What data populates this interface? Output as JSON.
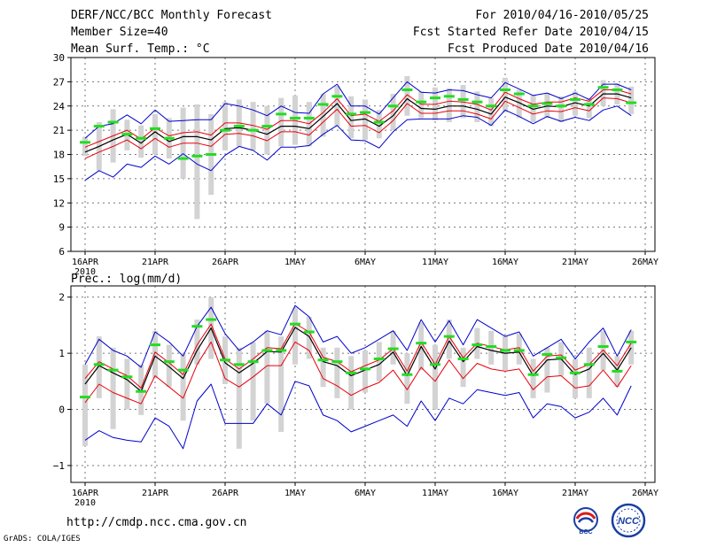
{
  "header": {
    "title": "DERF/NCC/BCC Monthly Forecast",
    "member_size": "Member Size=40",
    "variable": "Mean Surf. Temp.: °C",
    "period": "For 2010/04/16-2010/05/25",
    "started": "Fcst Started Refer Date 2010/04/15",
    "produced": "Fcst Produced Date 2010/04/16"
  },
  "footer": {
    "url": "http://cmdp.ncc.cma.gov.cn",
    "grads": "GrADS: COLA/IGES"
  },
  "logos": {
    "bcc": "BCC",
    "ncc": "NCC"
  },
  "colors": {
    "box": "#d3d3d3",
    "center": "#000000",
    "band": "#e8000b",
    "envelope": "#0000cc",
    "obs": "#22dd22",
    "grid": "#777777"
  },
  "chart_data": [
    {
      "type": "line",
      "title": "Mean Surf. Temp.: °C",
      "x_tick_labels": [
        "16APR",
        "21APR",
        "26APR",
        "1MAY",
        "6MAY",
        "11MAY",
        "16MAY",
        "21MAY",
        "26MAY"
      ],
      "x_tick_days": [
        0,
        5,
        10,
        15,
        20,
        25,
        30,
        35,
        40
      ],
      "x_sublabel": "2010",
      "ylim": [
        6,
        30
      ],
      "y_ticks": [
        6,
        9,
        12,
        15,
        18,
        21,
        24,
        27,
        30
      ],
      "y_tick_labels": [
        "6",
        "9",
        "12",
        "15",
        "18",
        "21",
        "24",
        "27",
        "30"
      ],
      "days": [
        0,
        1,
        2,
        3,
        4,
        5,
        6,
        7,
        8,
        9,
        10,
        11,
        12,
        13,
        14,
        15,
        16,
        17,
        18,
        19,
        20,
        21,
        22,
        23,
        24,
        25,
        26,
        27,
        28,
        29,
        30,
        31,
        32,
        33,
        34,
        35,
        36,
        37,
        38,
        39
      ],
      "series": [
        {
          "name": "ensemble mean",
          "values": [
            18.3,
            19.0,
            19.8,
            20.5,
            19.4,
            20.8,
            19.6,
            20.2,
            20.2,
            19.8,
            21.2,
            21.3,
            21.0,
            20.5,
            21.5,
            21.5,
            21.2,
            22.7,
            24.3,
            22.2,
            22.4,
            21.5,
            22.8,
            24.9,
            23.7,
            23.6,
            24.0,
            24.0,
            23.6,
            23.0,
            25.1,
            24.4,
            23.6,
            24.0,
            23.9,
            24.4,
            24.0,
            25.5,
            25.5,
            25.0
          ]
        },
        {
          "name": "upper band",
          "values": [
            18.9,
            19.6,
            20.3,
            21.0,
            19.9,
            21.3,
            20.3,
            20.7,
            20.8,
            20.4,
            21.9,
            21.9,
            21.6,
            21.1,
            22.2,
            22.2,
            21.8,
            23.2,
            24.9,
            22.8,
            23.0,
            22.1,
            23.4,
            25.4,
            24.2,
            24.2,
            24.6,
            24.5,
            24.2,
            23.5,
            25.7,
            24.9,
            24.2,
            24.5,
            24.5,
            25.0,
            24.6,
            26.0,
            26.0,
            25.5
          ]
        },
        {
          "name": "lower band",
          "values": [
            17.5,
            18.3,
            19.0,
            19.8,
            18.7,
            20.0,
            18.9,
            19.4,
            19.4,
            19.0,
            20.5,
            20.6,
            20.3,
            19.7,
            20.8,
            20.8,
            20.4,
            22.0,
            23.6,
            21.5,
            21.6,
            20.7,
            22.2,
            24.3,
            23.1,
            23.1,
            23.4,
            23.4,
            23.0,
            22.4,
            24.6,
            23.8,
            23.0,
            23.4,
            23.3,
            23.8,
            23.4,
            25.0,
            24.9,
            24.4
          ]
        },
        {
          "name": "max envelope",
          "values": [
            20.0,
            21.5,
            21.8,
            22.9,
            21.8,
            23.5,
            22.1,
            22.2,
            22.3,
            22.3,
            24.3,
            24.0,
            23.5,
            22.8,
            24.0,
            23.2,
            23.1,
            25.5,
            26.7,
            24.0,
            24.0,
            23.0,
            25.0,
            27.0,
            25.7,
            25.6,
            26.0,
            25.9,
            25.4,
            25.0,
            26.9,
            26.1,
            25.3,
            25.6,
            24.9,
            25.6,
            24.8,
            26.7,
            26.7,
            26.0
          ]
        },
        {
          "name": "min envelope",
          "values": [
            14.8,
            16.0,
            15.2,
            16.8,
            16.4,
            17.8,
            16.8,
            18.1,
            16.8,
            16.0,
            17.9,
            19.0,
            18.5,
            17.3,
            18.9,
            18.9,
            19.1,
            20.5,
            21.6,
            19.8,
            19.7,
            18.8,
            20.8,
            22.3,
            22.4,
            22.4,
            22.4,
            22.8,
            22.6,
            21.6,
            23.5,
            22.7,
            21.8,
            22.7,
            22.1,
            22.6,
            22.2,
            23.5,
            24.0,
            22.8
          ]
        },
        {
          "name": "observed",
          "values": [
            19.5,
            21.5,
            22.0,
            20.5,
            20.0,
            21.2,
            20.0,
            17.5,
            17.8,
            18.0,
            21.0,
            21.5,
            21.0,
            21.5,
            23.0,
            22.5,
            22.5,
            24.2,
            25.2,
            23.0,
            23.2,
            22.0,
            24.0,
            26.0,
            24.5,
            25.0,
            25.2,
            24.8,
            24.5,
            24.0,
            26.0,
            25.5,
            24.0,
            24.3,
            24.0,
            24.8,
            24.2,
            26.3,
            26.0,
            24.4
          ]
        },
        {
          "name": "spread max",
          "values": [
            20.2,
            22.0,
            23.6,
            22.3,
            21.6,
            23.0,
            22.5,
            23.8,
            24.2,
            23.0,
            24.5,
            24.8,
            24.5,
            24.0,
            25.0,
            25.3,
            24.5,
            25.5,
            26.5,
            25.2,
            24.8,
            23.5,
            25.5,
            27.7,
            25.8,
            26.3,
            26.2,
            26.6,
            25.8,
            25.0,
            27.5,
            26.0,
            25.4,
            25.6,
            25.2,
            25.8,
            25.0,
            27.2,
            26.8,
            26.4
          ]
        },
        {
          "name": "spread min",
          "values": [
            17.8,
            16.0,
            17.0,
            18.5,
            17.6,
            18.0,
            17.5,
            15.0,
            10.0,
            13.0,
            18.5,
            19.0,
            18.5,
            18.0,
            19.0,
            19.2,
            19.0,
            20.2,
            21.5,
            20.0,
            19.8,
            20.0,
            21.0,
            22.8,
            22.5,
            22.2,
            22.0,
            22.5,
            22.0,
            21.5,
            23.2,
            22.5,
            22.0,
            22.5,
            22.0,
            22.8,
            22.5,
            24.0,
            24.2,
            23.0
          ]
        }
      ]
    },
    {
      "type": "line",
      "title": "Prec.: log(mm/d)",
      "x_tick_labels": [
        "16APR",
        "21APR",
        "26APR",
        "1MAY",
        "6MAY",
        "11MAY",
        "16MAY",
        "21MAY",
        "26MAY"
      ],
      "x_tick_days": [
        0,
        5,
        10,
        15,
        20,
        25,
        30,
        35,
        40
      ],
      "x_sublabel": "2010",
      "ylim": [
        -1.3,
        2.2
      ],
      "y_ticks": [
        -1,
        0,
        1,
        2
      ],
      "y_tick_labels": [
        "−1",
        "0",
        "1",
        "2"
      ],
      "days": [
        0,
        1,
        2,
        3,
        4,
        5,
        6,
        7,
        8,
        9,
        10,
        11,
        12,
        13,
        14,
        15,
        16,
        17,
        18,
        19,
        20,
        21,
        22,
        23,
        24,
        25,
        26,
        27,
        28,
        29,
        30,
        31,
        32,
        33,
        34,
        35,
        36,
        37,
        38,
        39
      ],
      "series": [
        {
          "name": "ensemble mean",
          "values": [
            0.45,
            0.78,
            0.65,
            0.53,
            0.32,
            0.95,
            0.76,
            0.55,
            1.05,
            1.45,
            0.83,
            0.65,
            0.82,
            1.03,
            1.02,
            1.46,
            1.3,
            0.85,
            0.78,
            0.6,
            0.7,
            0.8,
            1.02,
            0.6,
            1.12,
            0.72,
            1.22,
            0.85,
            1.12,
            1.05,
            1.0,
            1.02,
            0.6,
            0.88,
            0.9,
            0.62,
            0.72,
            1.0,
            0.7,
            1.1
          ]
        },
        {
          "name": "upper band",
          "values": [
            0.55,
            0.85,
            0.72,
            0.6,
            0.38,
            1.02,
            0.83,
            0.62,
            1.15,
            1.52,
            0.9,
            0.72,
            0.9,
            1.1,
            1.08,
            1.53,
            1.38,
            0.93,
            0.85,
            0.67,
            0.78,
            0.88,
            1.08,
            0.68,
            1.2,
            0.8,
            1.3,
            0.92,
            1.18,
            1.12,
            1.06,
            1.1,
            0.68,
            0.95,
            0.97,
            0.7,
            0.8,
            1.06,
            0.78,
            1.18
          ]
        },
        {
          "name": "lower band",
          "values": [
            0.12,
            0.45,
            0.3,
            0.2,
            0.1,
            0.6,
            0.4,
            0.2,
            0.8,
            1.2,
            0.55,
            0.4,
            0.58,
            0.78,
            0.78,
            1.2,
            1.05,
            0.55,
            0.42,
            0.25,
            0.38,
            0.48,
            0.7,
            0.35,
            0.75,
            0.5,
            0.88,
            0.55,
            0.82,
            0.72,
            0.68,
            0.72,
            0.35,
            0.58,
            0.6,
            0.38,
            0.42,
            0.7,
            0.4,
            0.78
          ]
        },
        {
          "name": "max envelope",
          "values": [
            0.8,
            1.25,
            1.05,
            0.95,
            0.75,
            1.38,
            1.2,
            0.95,
            1.48,
            1.82,
            1.35,
            1.05,
            1.2,
            1.4,
            1.33,
            1.85,
            1.65,
            1.2,
            1.3,
            1.0,
            1.1,
            1.25,
            1.4,
            1.05,
            1.6,
            1.2,
            1.58,
            1.15,
            1.6,
            1.45,
            1.3,
            1.38,
            0.95,
            1.1,
            1.25,
            0.9,
            1.2,
            1.45,
            0.95,
            1.42
          ]
        },
        {
          "name": "min envelope",
          "values": [
            -0.55,
            -0.38,
            -0.5,
            -0.55,
            -0.58,
            -0.15,
            -0.3,
            -0.7,
            0.15,
            0.45,
            -0.25,
            -0.25,
            -0.25,
            0.1,
            -0.1,
            0.5,
            0.42,
            -0.1,
            -0.2,
            -0.4,
            -0.3,
            -0.2,
            -0.1,
            -0.3,
            0.15,
            -0.2,
            0.2,
            0.1,
            0.35,
            0.3,
            0.25,
            0.3,
            -0.15,
            0.1,
            0.05,
            -0.15,
            -0.05,
            0.2,
            -0.1,
            0.42
          ]
        },
        {
          "name": "observed",
          "values": [
            0.22,
            0.8,
            0.7,
            0.58,
            0.32,
            1.15,
            0.85,
            0.7,
            1.48,
            1.6,
            0.88,
            0.8,
            0.85,
            1.05,
            1.05,
            1.52,
            1.38,
            0.88,
            0.85,
            0.65,
            0.72,
            0.9,
            1.08,
            0.62,
            1.18,
            0.8,
            1.3,
            0.9,
            1.15,
            1.12,
            1.05,
            1.05,
            0.62,
            0.98,
            0.92,
            0.65,
            0.8,
            1.12,
            0.68,
            1.2
          ]
        },
        {
          "name": "spread max",
          "values": [
            0.8,
            1.3,
            1.1,
            0.9,
            0.8,
            1.4,
            1.15,
            1.0,
            1.6,
            2.0,
            1.3,
            1.1,
            1.2,
            1.4,
            1.3,
            1.8,
            1.65,
            1.1,
            1.1,
            0.95,
            1.05,
            1.2,
            1.4,
            1.0,
            1.55,
            1.15,
            1.6,
            1.1,
            1.45,
            1.4,
            1.3,
            1.35,
            0.9,
            1.1,
            1.2,
            0.9,
            1.1,
            1.4,
            0.95,
            1.4
          ]
        },
        {
          "name": "spread min",
          "values": [
            -0.65,
            0.2,
            -0.35,
            0.0,
            -0.1,
            0.55,
            0.4,
            -0.2,
            0.8,
            0.9,
            0.45,
            -0.7,
            -0.2,
            0.1,
            -0.4,
            0.8,
            0.9,
            0.4,
            0.2,
            0.0,
            0.3,
            0.5,
            0.8,
            0.1,
            0.7,
            0.0,
            0.9,
            0.4,
            0.9,
            0.8,
            0.7,
            0.8,
            0.2,
            0.3,
            0.6,
            0.2,
            0.2,
            0.7,
            0.4,
            0.8
          ]
        }
      ]
    }
  ]
}
